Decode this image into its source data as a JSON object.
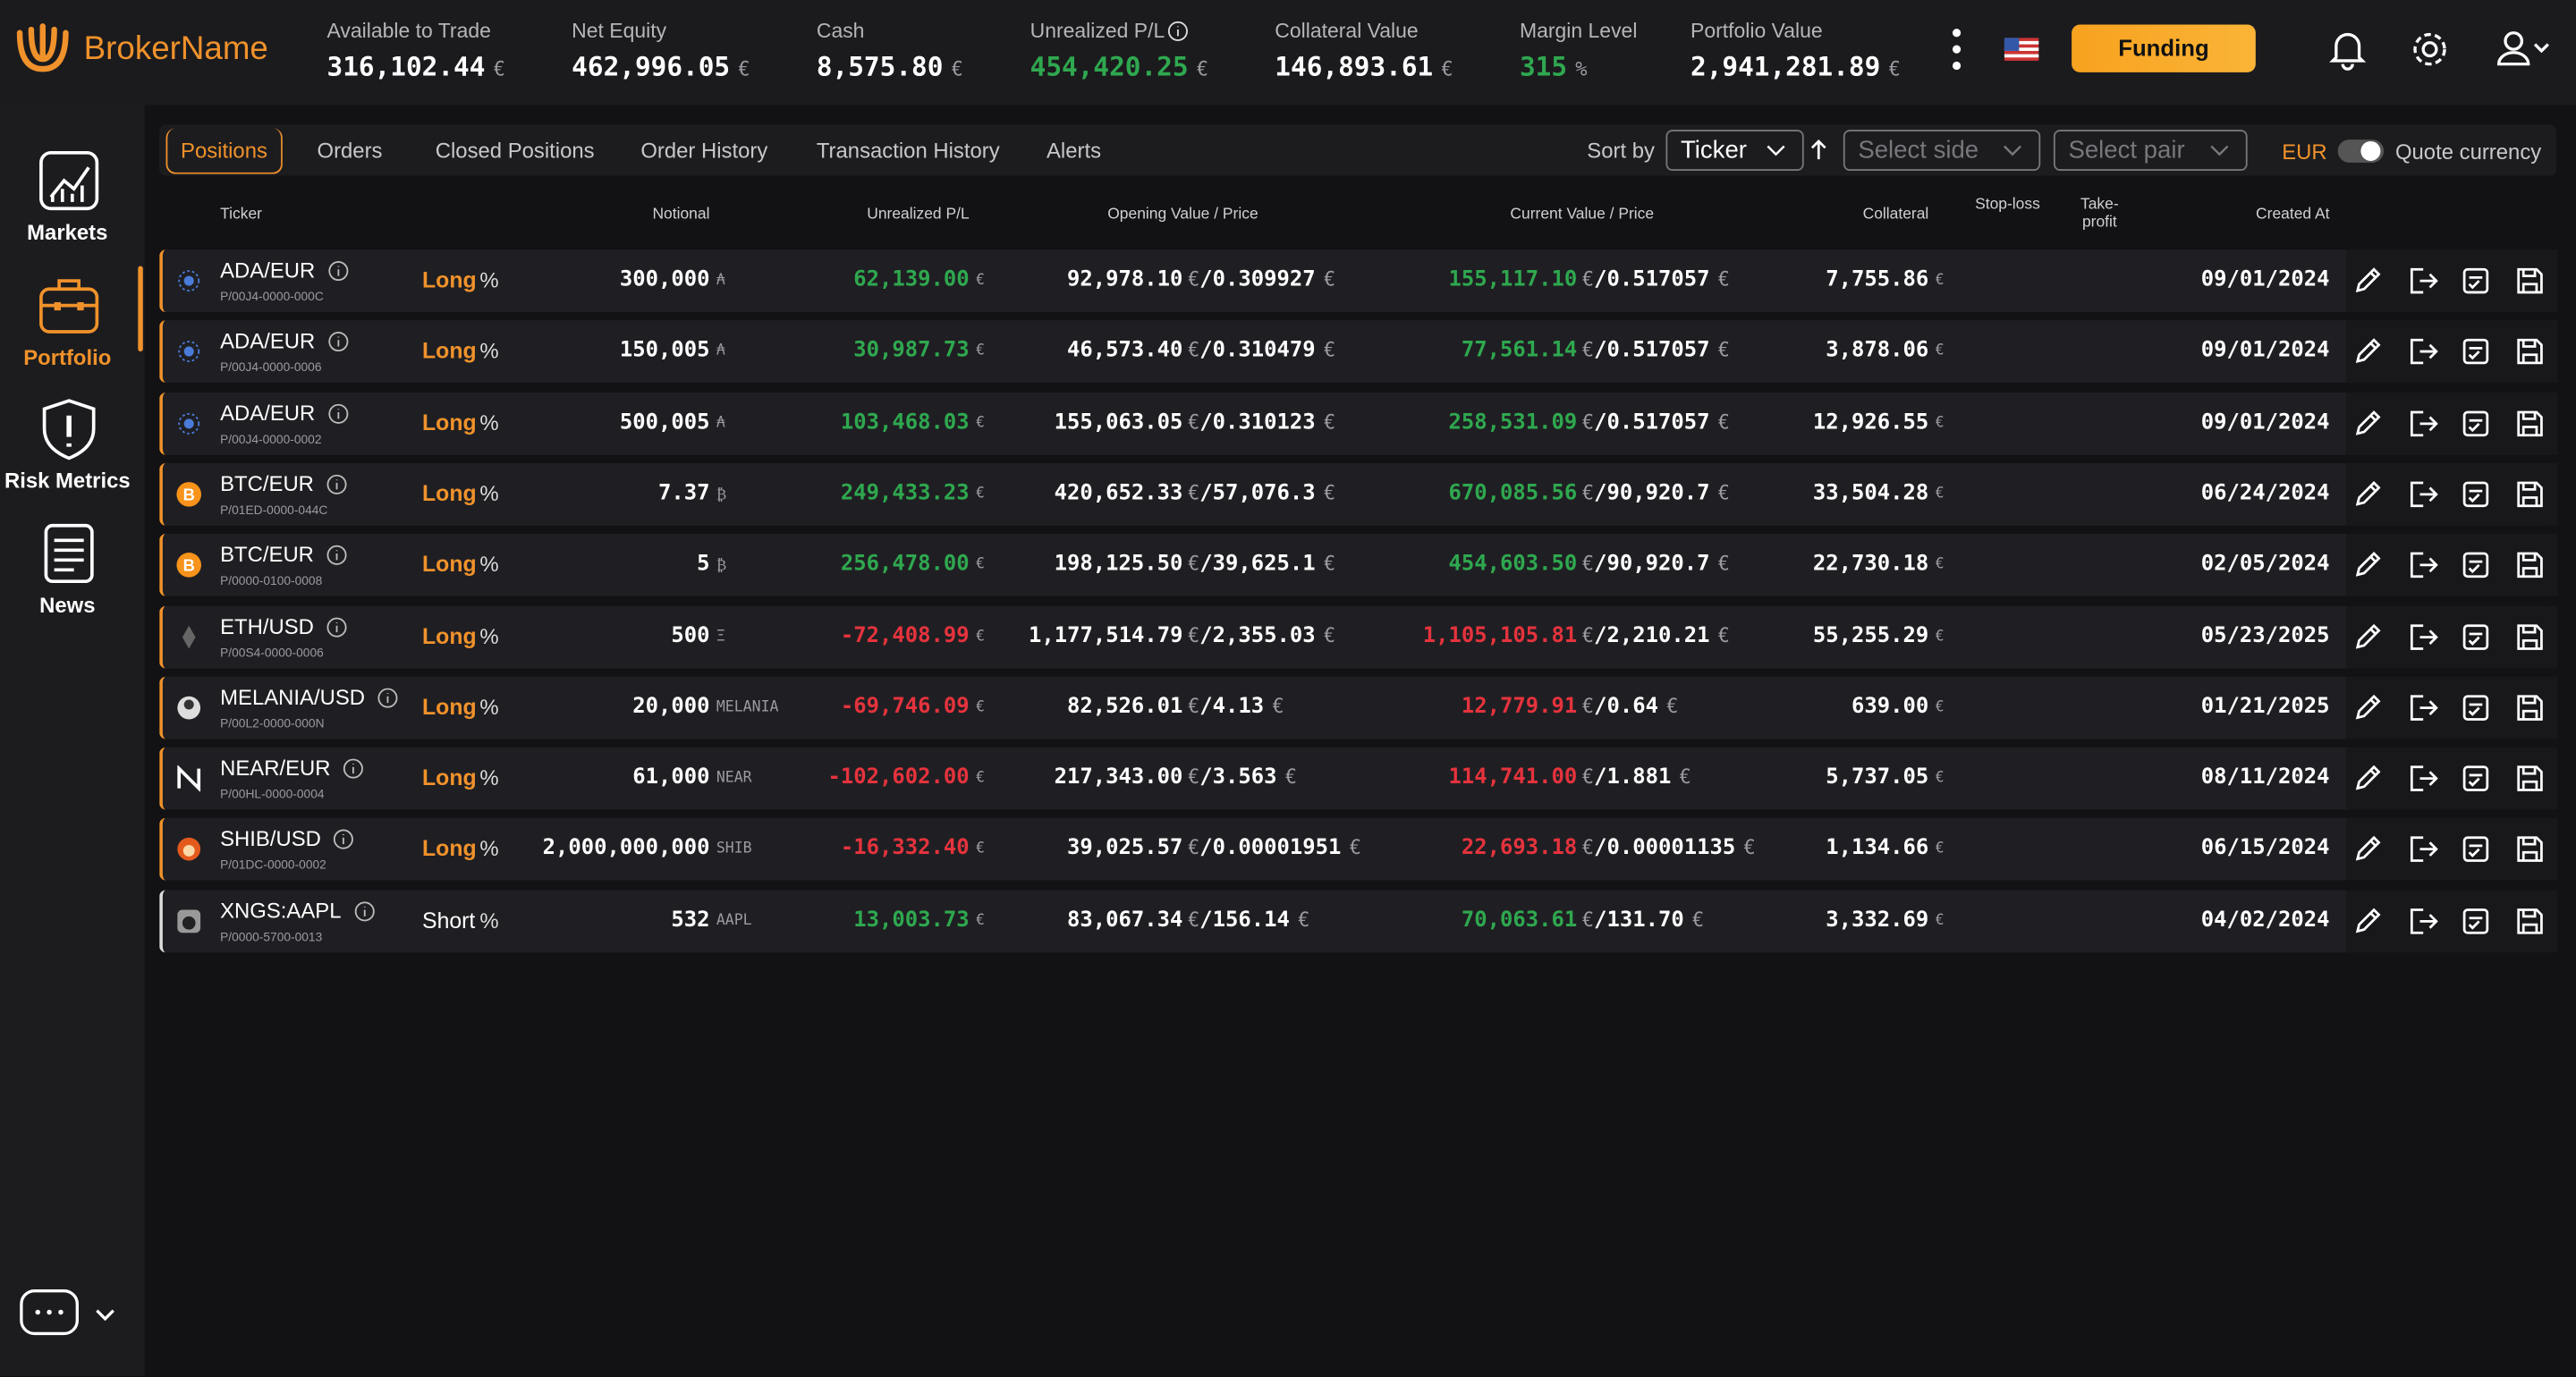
{
  "brand": "BrokerName",
  "metrics": [
    {
      "label": "Available to Trade",
      "value": "316,102.44",
      "unit": "€"
    },
    {
      "label": "Net Equity",
      "value": "462,996.05",
      "unit": "€"
    },
    {
      "label": "Cash",
      "value": "8,575.80",
      "unit": "€"
    },
    {
      "label": "Unrealized P/L",
      "value": "454,420.25",
      "unit": "€",
      "color": "#2fa84f"
    },
    {
      "label": "Collateral Value",
      "value": "146,893.61",
      "unit": "€"
    },
    {
      "label": "Margin Level",
      "value": "315",
      "unit": "%",
      "color": "#2fa84f"
    },
    {
      "label": "Portfolio Value",
      "value": "2,941,281.89",
      "unit": "€"
    }
  ],
  "funding": "Funding",
  "nav": [
    "Markets",
    "Portfolio",
    "Risk Metrics",
    "News"
  ],
  "tabs": [
    "Positions",
    "Orders",
    "Closed Positions",
    "Order History",
    "Transaction History",
    "Alerts"
  ],
  "sort": {
    "label": "Sort by",
    "value": "Ticker",
    "side": "Select side",
    "pair": "Select pair",
    "currency": "EUR",
    "toggle": "Quote currency"
  },
  "table": {
    "columns": [
      "Ticker",
      "Notional",
      "Unrealized P/L",
      "Opening Value / Price",
      "Current Value / Price",
      "Collateral",
      "Stop-loss",
      "Take-profit",
      "Created At"
    ],
    "currency": "€",
    "separator": "/",
    "percent": "%",
    "rows": [
      {
        "ticker": "ADA/EUR",
        "id": "P/00J4-0000-000C",
        "side": "Long",
        "notional": "300,000",
        "unit": "₳",
        "pl": "62,139.00",
        "open_value": "92,978.10",
        "open_price": "0.309927",
        "current_value": "155,117.10",
        "current_price": "0.517057",
        "collateral": "7,755.86",
        "created": "09/01/2024"
      },
      {
        "ticker": "ADA/EUR",
        "id": "P/00J4-0000-0006",
        "side": "Long",
        "notional": "150,005",
        "unit": "₳",
        "pl": "30,987.73",
        "open_value": "46,573.40",
        "open_price": "0.310479",
        "current_value": "77,561.14",
        "current_price": "0.517057",
        "collateral": "3,878.06",
        "created": "09/01/2024"
      },
      {
        "ticker": "ADA/EUR",
        "id": "P/00J4-0000-0002",
        "side": "Long",
        "notional": "500,005",
        "unit": "₳",
        "pl": "103,468.03",
        "open_value": "155,063.05",
        "open_price": "0.310123",
        "current_value": "258,531.09",
        "current_price": "0.517057",
        "collateral": "12,926.55",
        "created": "09/01/2024"
      },
      {
        "ticker": "BTC/EUR",
        "id": "P/01ED-0000-044C",
        "side": "Long",
        "notional": "7.37",
        "unit": "₿",
        "pl": "249,433.23",
        "open_value": "420,652.33",
        "open_price": "57,076.3",
        "current_value": "670,085.56",
        "current_price": "90,920.7",
        "collateral": "33,504.28",
        "created": "06/24/2024"
      },
      {
        "ticker": "BTC/EUR",
        "id": "P/0000-0100-0008",
        "side": "Long",
        "notional": "5",
        "unit": "₿",
        "pl": "256,478.00",
        "open_value": "198,125.50",
        "open_price": "39,625.1",
        "current_value": "454,603.50",
        "current_price": "90,920.7",
        "collateral": "22,730.18",
        "created": "02/05/2024"
      },
      {
        "ticker": "ETH/USD",
        "id": "P/00S4-0000-0006",
        "side": "Long",
        "notional": "500",
        "unit": "Ξ",
        "pl": "-72,408.99",
        "open_value": "1,177,514.79",
        "open_price": "2,355.03",
        "current_value": "1,105,105.81",
        "current_price": "2,210.21",
        "collateral": "55,255.29",
        "created": "05/23/2025"
      },
      {
        "ticker": "MELANIA/USD",
        "id": "P/00L2-0000-000N",
        "side": "Long",
        "notional": "20,000",
        "unit": "MELANIA",
        "pl": "-69,746.09",
        "open_value": "82,526.01",
        "open_price": "4.13",
        "current_value": "12,779.91",
        "current_price": "0.64",
        "collateral": "639.00",
        "created": "01/21/2025"
      },
      {
        "ticker": "NEAR/EUR",
        "id": "P/00HL-0000-0004",
        "side": "Long",
        "notional": "61,000",
        "unit": "NEAR",
        "pl": "-102,602.00",
        "open_value": "217,343.00",
        "open_price": "3.563",
        "current_value": "114,741.00",
        "current_price": "1.881",
        "collateral": "5,737.05",
        "created": "08/11/2024"
      },
      {
        "ticker": "SHIB/USD",
        "id": "P/01DC-0000-0002",
        "side": "Long",
        "notional": "2,000,000,000",
        "unit": "SHIB",
        "pl": "-16,332.40",
        "open_value": "39,025.57",
        "open_price": "0.00001951",
        "current_value": "22,693.18",
        "current_price": "0.00001135",
        "collateral": "1,134.66",
        "created": "06/15/2024"
      },
      {
        "ticker": "XNGS:AAPL",
        "id": "P/0000-5700-0013",
        "side": "Short",
        "notional": "532",
        "unit": "AAPL",
        "pl": "13,003.73",
        "open_value": "83,067.34",
        "open_price": "156.14",
        "current_value": "70,063.61",
        "current_price": "131.70",
        "collateral": "3,332.69",
        "created": "04/02/2024"
      }
    ]
  }
}
